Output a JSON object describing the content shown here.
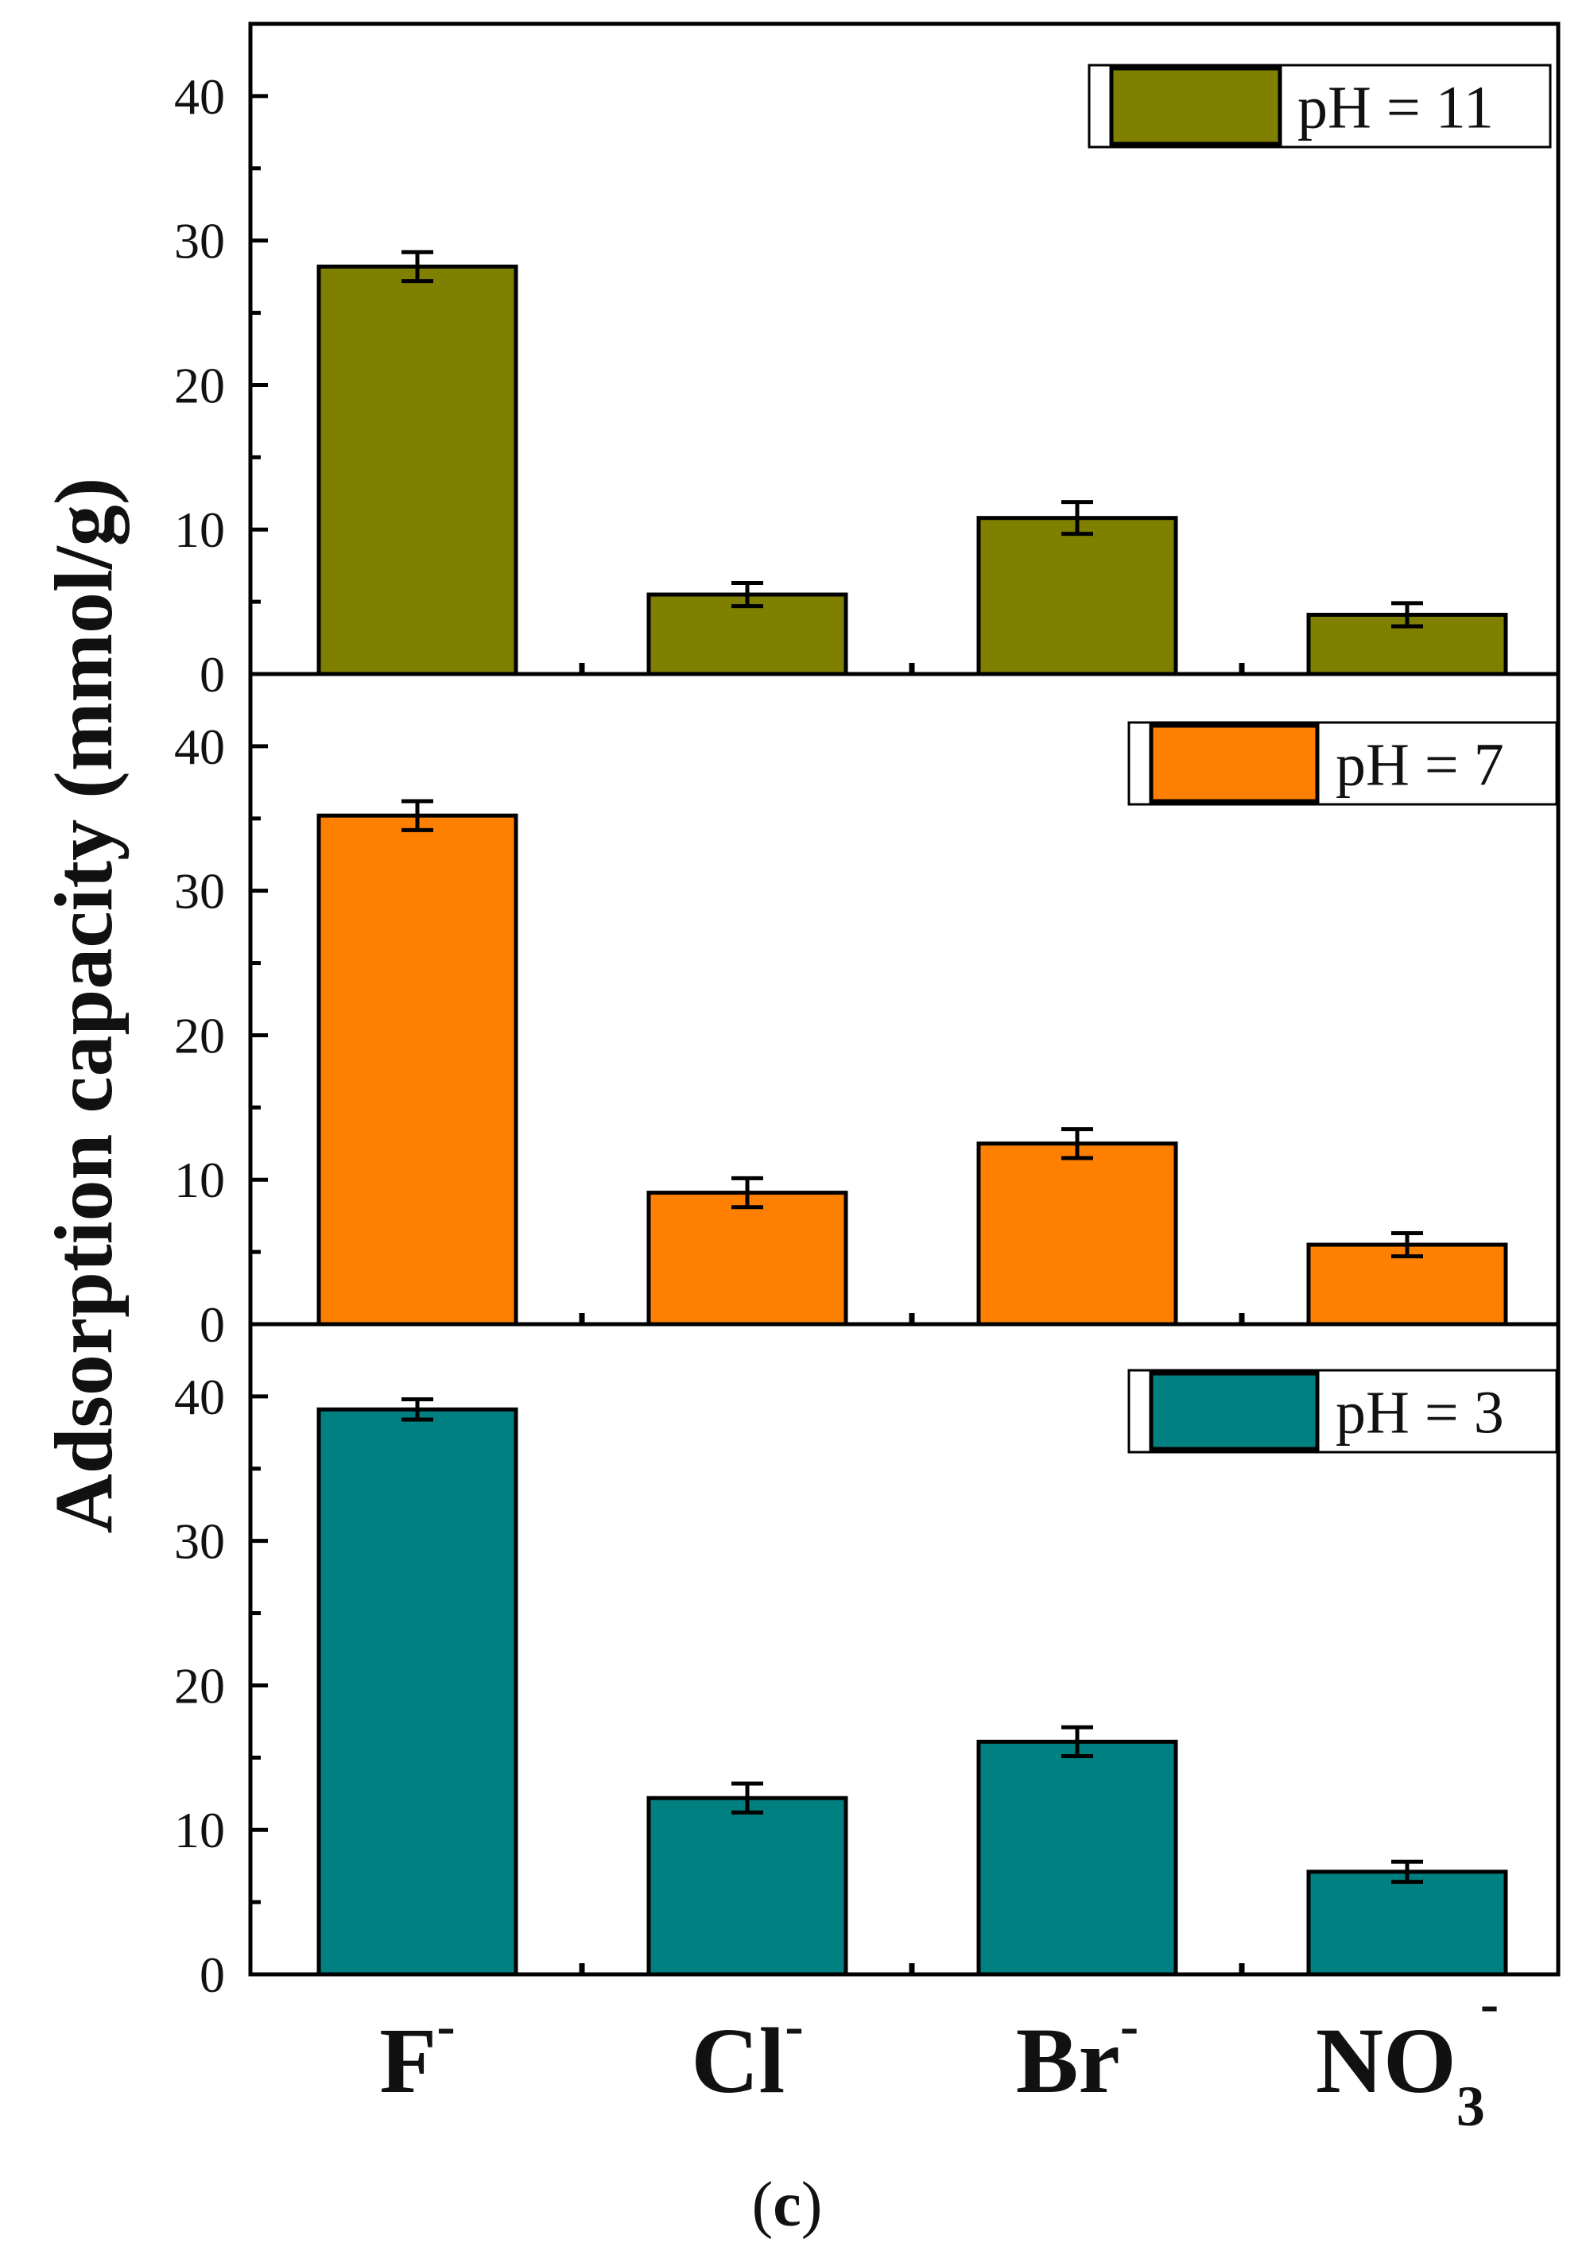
{
  "chart_data": {
    "type": "bar",
    "ylabel": "Adsorption capacity (mmol/g)",
    "categories": [
      {
        "base": "F",
        "sub": "",
        "sup": "-"
      },
      {
        "base": "Cl",
        "sub": "",
        "sup": "-"
      },
      {
        "base": "Br",
        "sub": "",
        "sup": "-"
      },
      {
        "base": "NO",
        "sub": "3",
        "sup": "-"
      }
    ],
    "ylim": [
      0,
      45
    ],
    "yticks": [
      "0",
      "10",
      "20",
      "30",
      "40"
    ],
    "ytick_values": [
      0,
      10,
      20,
      30,
      40
    ],
    "panels": [
      {
        "legend": "pH = 11",
        "color": "#7f7f00",
        "values": [
          28.2,
          5.5,
          10.8,
          4.1
        ],
        "errors": [
          1.0,
          0.8,
          1.1,
          0.8
        ]
      },
      {
        "legend": "pH = 7",
        "color": "#ff8000",
        "values": [
          35.2,
          9.1,
          12.5,
          5.5
        ],
        "errors": [
          1.0,
          1.0,
          1.0,
          0.8
        ]
      },
      {
        "legend": "pH = 3",
        "color": "#008080",
        "values": [
          39.1,
          12.2,
          16.1,
          7.1
        ],
        "errors": [
          0.7,
          1.0,
          1.0,
          0.7
        ]
      }
    ]
  },
  "caption": {
    "open": "(",
    "letter": "c",
    "close": ")"
  }
}
